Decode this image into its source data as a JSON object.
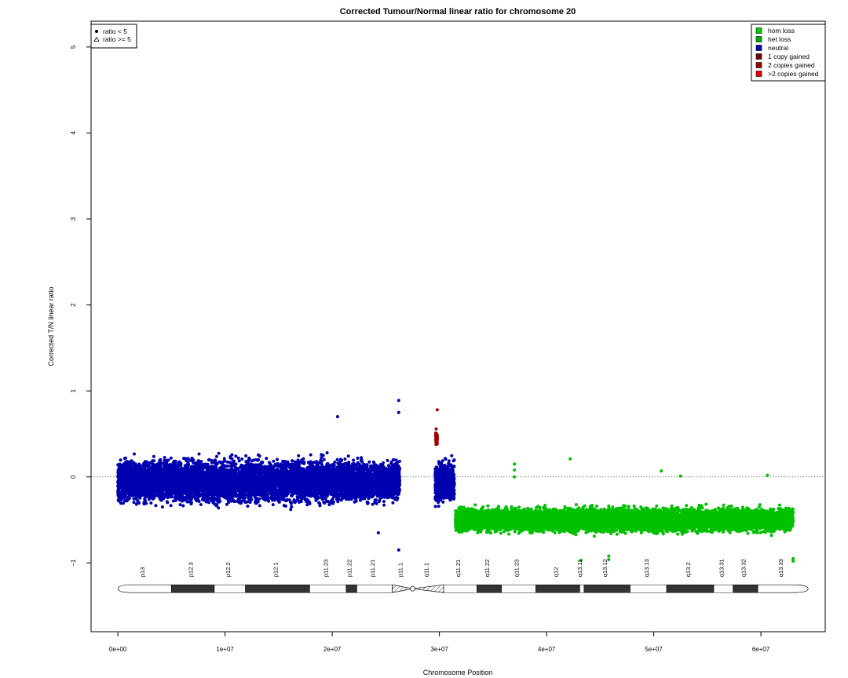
{
  "chart_data": {
    "type": "scatter",
    "title": "Corrected Tumour/Normal linear ratio for chromosome  20",
    "xlabel": "Chromosome Position",
    "ylabel": "Corrected T/N linear ratio",
    "xlim": [
      -2500000,
      66000000
    ],
    "ylim": [
      -1.8,
      5.3
    ],
    "x_ticks": [
      0,
      10000000,
      20000000,
      30000000,
      40000000,
      50000000,
      60000000
    ],
    "x_tick_labels": [
      "0e+00",
      "1e+07",
      "2e+07",
      "3e+07",
      "4e+07",
      "5e+07",
      "6e+07"
    ],
    "y_ticks": [
      -1,
      0,
      1,
      2,
      3,
      4,
      5
    ],
    "y_tick_labels": [
      "−1",
      "0",
      "1",
      "2",
      "3",
      "4",
      "5"
    ],
    "reference_line_y": 0,
    "shape_legend": {
      "position": "top-left",
      "entries": [
        {
          "label": "ratio < 5",
          "marker": "filled-circle"
        },
        {
          "label": "ratio >= 5",
          "marker": "open-triangle"
        }
      ]
    },
    "color_legend": {
      "position": "top-right",
      "entries": [
        {
          "label": "hom loss",
          "color": "#00d000"
        },
        {
          "label": "het loss",
          "color": "#00b000"
        },
        {
          "label": "neutral",
          "color": "#0000b0"
        },
        {
          "label": "1 copy gained",
          "color": "#700000"
        },
        {
          "label": "2 copies gained",
          "color": "#a00000"
        },
        {
          "label": ">2 copies gained",
          "color": "#e00000"
        }
      ]
    },
    "segments": [
      {
        "state": "neutral",
        "color": "#0000b0",
        "x_start": 0,
        "x_end": 26300000,
        "center": -0.05,
        "spread": 0.2
      },
      {
        "state": "neutral",
        "color": "#0000b0",
        "x_start": 29600000,
        "x_end": 31400000,
        "center": -0.05,
        "spread": 0.2
      },
      {
        "state": "2 copies gained",
        "color": "#a00000",
        "x_start": 29650000,
        "x_end": 29800000,
        "center": 0.45,
        "spread": 0.08
      },
      {
        "state": "het loss",
        "color": "#00c000",
        "x_start": 31500000,
        "x_end": 63000000,
        "center": -0.5,
        "spread": 0.11
      }
    ],
    "outliers": [
      {
        "x": 26200000,
        "y": 0.89,
        "color": "#0000b0"
      },
      {
        "x": 26200000,
        "y": 0.75,
        "color": "#0000b0"
      },
      {
        "x": 26200000,
        "y": -0.85,
        "color": "#0000b0"
      },
      {
        "x": 29800000,
        "y": 0.78,
        "color": "#a00000"
      },
      {
        "x": 20500000,
        "y": 0.7,
        "color": "#0000b0"
      },
      {
        "x": 24300000,
        "y": -0.65,
        "color": "#0000b0"
      },
      {
        "x": 37000000,
        "y": 0.15,
        "color": "#00c000"
      },
      {
        "x": 37000000,
        "y": 0.08,
        "color": "#00c000"
      },
      {
        "x": 37000000,
        "y": 0.0,
        "color": "#00c000"
      },
      {
        "x": 42200000,
        "y": 0.21,
        "color": "#00c000"
      },
      {
        "x": 50700000,
        "y": 0.07,
        "color": "#00c000"
      },
      {
        "x": 52500000,
        "y": 0.01,
        "color": "#00c000"
      },
      {
        "x": 60600000,
        "y": 0.02,
        "color": "#00c000"
      },
      {
        "x": 45800000,
        "y": -0.92,
        "color": "#00c000"
      },
      {
        "x": 45800000,
        "y": -0.96,
        "color": "#00c000"
      },
      {
        "x": 63000000,
        "y": -0.95,
        "color": "#00c000"
      },
      {
        "x": 63000000,
        "y": -0.98,
        "color": "#00c000"
      },
      {
        "x": 43200000,
        "y": -0.97,
        "color": "#00c000"
      }
    ],
    "ideogram": {
      "y": -1.3,
      "bands": [
        {
          "name": "p13",
          "start": 0,
          "end": 5000000,
          "stain": "gneg"
        },
        {
          "name": "p12.3",
          "start": 5000000,
          "end": 9000000,
          "stain": "gpos"
        },
        {
          "name": "p12.2",
          "start": 9000000,
          "end": 11900000,
          "stain": "gneg"
        },
        {
          "name": "p12.1",
          "start": 11900000,
          "end": 17900000,
          "stain": "gpos"
        },
        {
          "name": "p11.23",
          "start": 17900000,
          "end": 21300000,
          "stain": "gneg"
        },
        {
          "name": "p11.22",
          "start": 21300000,
          "end": 22300000,
          "stain": "gpos"
        },
        {
          "name": "p11.21",
          "start": 22300000,
          "end": 25600000,
          "stain": "gneg"
        },
        {
          "name": "p11.1",
          "start": 25600000,
          "end": 27500000,
          "stain": "acen"
        },
        {
          "name": "q11.1",
          "start": 27500000,
          "end": 30400000,
          "stain": "acen"
        },
        {
          "name": "q11.21",
          "start": 30400000,
          "end": 33500000,
          "stain": "gneg"
        },
        {
          "name": "q11.22",
          "start": 33500000,
          "end": 35800000,
          "stain": "gpos"
        },
        {
          "name": "q11.23",
          "start": 35800000,
          "end": 39000000,
          "stain": "gneg"
        },
        {
          "name": "q12",
          "start": 39000000,
          "end": 43100000,
          "stain": "gpos"
        },
        {
          "name": "q13.11",
          "start": 43100000,
          "end": 43500000,
          "stain": "gneg"
        },
        {
          "name": "q13.12",
          "start": 43500000,
          "end": 47800000,
          "stain": "gpos"
        },
        {
          "name": "q13.13",
          "start": 47800000,
          "end": 51200000,
          "stain": "gneg"
        },
        {
          "name": "q13.2",
          "start": 51200000,
          "end": 55600000,
          "stain": "gpos"
        },
        {
          "name": "q13.31",
          "start": 55600000,
          "end": 57400000,
          "stain": "gneg"
        },
        {
          "name": "q13.32",
          "start": 57400000,
          "end": 59700000,
          "stain": "gpos"
        },
        {
          "name": "q13.33",
          "start": 59700000,
          "end": 64400000,
          "stain": "gneg"
        }
      ]
    }
  }
}
